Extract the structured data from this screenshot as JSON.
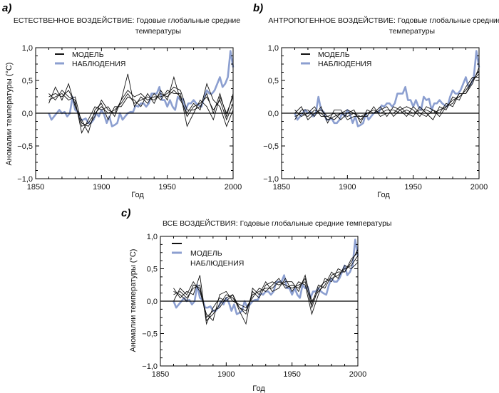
{
  "colors": {
    "model": "#111111",
    "observations": "#8c9fd0"
  },
  "chart_data": [
    {
      "type": "line",
      "panel_label": "a)",
      "title_line1": "ЕСТЕСТВЕННОЕ ВОЗДЕЙСТВИЕ: Годовые глобальные средние",
      "title_line2": "температуры",
      "xlabel": "Год",
      "ylabel": "Аномалии температуры (°C)",
      "xlim": [
        1850,
        2000
      ],
      "ylim": [
        -1.0,
        1.0
      ],
      "xticks": [
        "1850",
        "1900",
        "1950",
        "2000"
      ],
      "yticks": [
        "1,0",
        "0,5",
        "0,0",
        "−0,5",
        "−1,0"
      ],
      "legend": {
        "model": "МОДЕЛЬ",
        "observations": "НАБЛЮДЕНИЯ"
      },
      "model_x": [
        1860,
        1865,
        1870,
        1875,
        1880,
        1885,
        1890,
        1895,
        1900,
        1905,
        1910,
        1915,
        1920,
        1925,
        1930,
        1935,
        1940,
        1945,
        1950,
        1955,
        1960,
        1965,
        1970,
        1975,
        1980,
        1985,
        1990,
        1995,
        2000
      ],
      "model_runs": [
        [
          0.25,
          0.3,
          0.25,
          0.35,
          0.15,
          -0.2,
          -0.15,
          0.0,
          0.1,
          0.0,
          0.05,
          0.15,
          0.3,
          0.15,
          0.2,
          0.25,
          0.2,
          0.3,
          0.25,
          0.35,
          0.25,
          -0.05,
          0.1,
          0.15,
          0.25,
          0.05,
          0.2,
          -0.1,
          0.15
        ],
        [
          0.3,
          0.2,
          0.35,
          0.25,
          0.2,
          -0.3,
          -0.1,
          0.1,
          0.05,
          0.1,
          -0.05,
          0.2,
          0.6,
          0.1,
          0.25,
          0.15,
          0.3,
          0.2,
          0.35,
          0.3,
          0.3,
          -0.2,
          0.0,
          0.2,
          0.1,
          -0.1,
          0.25,
          0.0,
          0.25
        ],
        [
          0.15,
          0.4,
          0.2,
          0.45,
          0.1,
          -0.1,
          -0.3,
          0.05,
          0.15,
          -0.1,
          0.1,
          0.1,
          0.25,
          0.2,
          0.1,
          0.3,
          0.15,
          0.35,
          0.2,
          0.55,
          0.2,
          0.0,
          0.15,
          0.05,
          0.45,
          0.2,
          0.1,
          -0.2,
          0.05
        ],
        [
          0.2,
          0.25,
          0.3,
          0.2,
          0.25,
          -0.15,
          -0.2,
          -0.05,
          0.2,
          0.05,
          0.0,
          0.2,
          0.35,
          0.25,
          0.3,
          0.2,
          0.25,
          0.25,
          0.3,
          0.4,
          0.35,
          0.05,
          0.05,
          0.1,
          0.3,
          0.0,
          0.3,
          -0.05,
          0.3
        ]
      ]
    },
    {
      "type": "line",
      "panel_label": "b)",
      "title_line1": "АНТРОПОГЕННОЕ ВОЗДЕЙСТВИЕ: Годовые глобальные средние",
      "title_line2": "температуры",
      "xlabel": "Год",
      "xlim": [
        1850,
        2000
      ],
      "ylim": [
        -1.0,
        1.0
      ],
      "xticks": [
        "1850",
        "1900",
        "1950",
        "2000"
      ],
      "yticks": [
        "1,0",
        "0,5",
        "0,0",
        "−0,5",
        "−1,0"
      ],
      "legend": {
        "model": "МОДЕЛЬ",
        "observations": "НАБЛЮДЕНИЯ"
      },
      "model_x": [
        1860,
        1865,
        1870,
        1875,
        1880,
        1885,
        1890,
        1895,
        1900,
        1905,
        1910,
        1915,
        1920,
        1925,
        1930,
        1935,
        1940,
        1945,
        1950,
        1955,
        1960,
        1965,
        1970,
        1975,
        1980,
        1985,
        1990,
        1995,
        2000
      ],
      "model_runs": [
        [
          -0.05,
          0.0,
          -0.05,
          0.05,
          0.0,
          -0.1,
          -0.05,
          0.0,
          -0.05,
          0.0,
          -0.1,
          0.0,
          0.05,
          0.0,
          0.05,
          0.05,
          0.0,
          0.05,
          0.0,
          0.05,
          0.05,
          0.0,
          0.05,
          0.1,
          0.2,
          0.25,
          0.35,
          0.5,
          0.6
        ],
        [
          0.0,
          0.1,
          -0.1,
          0.0,
          0.05,
          -0.05,
          0.0,
          -0.1,
          0.0,
          0.05,
          -0.15,
          0.05,
          0.0,
          0.1,
          -0.05,
          0.1,
          0.05,
          -0.05,
          0.1,
          0.0,
          -0.05,
          0.05,
          0.0,
          0.15,
          0.1,
          0.3,
          0.3,
          0.45,
          0.7
        ],
        [
          -0.1,
          0.05,
          0.05,
          -0.05,
          0.1,
          -0.15,
          0.05,
          0.05,
          -0.1,
          -0.05,
          -0.05,
          -0.05,
          0.1,
          -0.05,
          0.0,
          0.0,
          0.1,
          0.0,
          -0.05,
          0.1,
          0.0,
          -0.1,
          0.1,
          0.05,
          0.25,
          0.2,
          0.4,
          0.55,
          0.55
        ],
        [
          0.05,
          -0.05,
          0.0,
          0.1,
          -0.05,
          -0.05,
          -0.1,
          0.0,
          0.05,
          0.0,
          -0.05,
          0.0,
          0.0,
          0.05,
          0.1,
          -0.05,
          0.05,
          0.1,
          0.05,
          -0.05,
          0.1,
          0.05,
          -0.05,
          0.1,
          0.15,
          0.3,
          0.3,
          0.5,
          0.65
        ]
      ]
    },
    {
      "type": "line",
      "panel_label": "c)",
      "title_line1": "ВСЕ ВОЗДЕЙСТВИЯ: Годовые глобальные средние температуры",
      "xlabel": "Год",
      "ylabel": "Аномалии температуры (°C)",
      "xlim": [
        1850,
        2000
      ],
      "ylim": [
        -1.0,
        1.0
      ],
      "xticks": [
        "1850",
        "1900",
        "1950",
        "2000"
      ],
      "yticks": [
        "1,0",
        "0,5",
        "0,0",
        "−0,5",
        "−1,0"
      ],
      "legend": {
        "model": "МОДЕЛЬ",
        "observations": "НАБЛЮДЕНИЯ"
      },
      "model_x": [
        1860,
        1865,
        1870,
        1875,
        1880,
        1885,
        1890,
        1895,
        1900,
        1905,
        1910,
        1915,
        1920,
        1925,
        1930,
        1935,
        1940,
        1945,
        1950,
        1955,
        1960,
        1965,
        1970,
        1975,
        1980,
        1985,
        1990,
        1995,
        2000
      ],
      "model_runs": [
        [
          0.1,
          0.15,
          0.05,
          0.2,
          0.25,
          -0.3,
          -0.2,
          -0.05,
          0.1,
          0.05,
          -0.1,
          -0.15,
          0.1,
          0.15,
          0.2,
          0.2,
          0.3,
          0.25,
          0.2,
          0.25,
          0.3,
          -0.1,
          0.2,
          0.3,
          0.35,
          0.4,
          0.5,
          0.55,
          0.7
        ],
        [
          0.2,
          0.05,
          0.15,
          0.1,
          0.4,
          -0.35,
          -0.1,
          0.05,
          0.0,
          0.1,
          -0.15,
          -0.35,
          0.2,
          0.1,
          0.3,
          0.15,
          0.2,
          0.35,
          0.15,
          0.3,
          0.25,
          -0.2,
          0.1,
          0.35,
          0.3,
          0.5,
          0.45,
          0.6,
          0.8
        ],
        [
          0.0,
          0.2,
          0.1,
          0.3,
          0.15,
          -0.2,
          -0.3,
          0.1,
          0.15,
          0.0,
          -0.05,
          -0.1,
          0.05,
          0.2,
          0.15,
          0.25,
          0.35,
          0.2,
          0.25,
          0.2,
          0.35,
          0.0,
          0.15,
          0.25,
          0.45,
          0.35,
          0.55,
          0.5,
          0.6
        ],
        [
          0.15,
          0.1,
          0.0,
          0.25,
          0.2,
          -0.25,
          -0.15,
          -0.1,
          0.05,
          0.1,
          -0.1,
          -0.2,
          0.15,
          0.05,
          0.25,
          0.3,
          0.25,
          0.3,
          0.3,
          0.15,
          0.4,
          -0.05,
          0.25,
          0.2,
          0.4,
          0.45,
          0.45,
          0.65,
          0.75
        ]
      ]
    }
  ],
  "observations": {
    "x": [
      1860,
      1862,
      1864,
      1866,
      1868,
      1870,
      1872,
      1874,
      1876,
      1878,
      1880,
      1882,
      1884,
      1886,
      1888,
      1890,
      1892,
      1894,
      1896,
      1898,
      1900,
      1902,
      1904,
      1906,
      1908,
      1910,
      1912,
      1914,
      1916,
      1918,
      1920,
      1922,
      1924,
      1926,
      1928,
      1930,
      1932,
      1934,
      1936,
      1938,
      1940,
      1942,
      1944,
      1946,
      1948,
      1950,
      1952,
      1954,
      1956,
      1958,
      1960,
      1962,
      1964,
      1966,
      1968,
      1970,
      1972,
      1974,
      1976,
      1978,
      1980,
      1982,
      1984,
      1986,
      1988,
      1990,
      1992,
      1994,
      1996,
      1998,
      2000
    ],
    "y": [
      0.0,
      -0.1,
      -0.05,
      0.0,
      0.05,
      0.0,
      0.02,
      -0.05,
      0.0,
      0.25,
      0.05,
      0.02,
      -0.1,
      -0.1,
      -0.08,
      -0.15,
      -0.15,
      -0.1,
      0.0,
      -0.05,
      0.05,
      -0.02,
      -0.15,
      -0.05,
      -0.2,
      -0.18,
      -0.15,
      0.0,
      -0.1,
      -0.05,
      0.0,
      0.02,
      0.02,
      0.12,
      0.1,
      0.15,
      0.15,
      0.1,
      0.15,
      0.3,
      0.3,
      0.3,
      0.4,
      0.2,
      0.2,
      0.1,
      0.2,
      0.1,
      0.05,
      0.25,
      0.2,
      0.22,
      0.05,
      0.15,
      0.15,
      0.2,
      0.15,
      0.12,
      0.1,
      0.25,
      0.35,
      0.3,
      0.3,
      0.35,
      0.45,
      0.55,
      0.4,
      0.45,
      0.55,
      0.95,
      0.7
    ]
  }
}
